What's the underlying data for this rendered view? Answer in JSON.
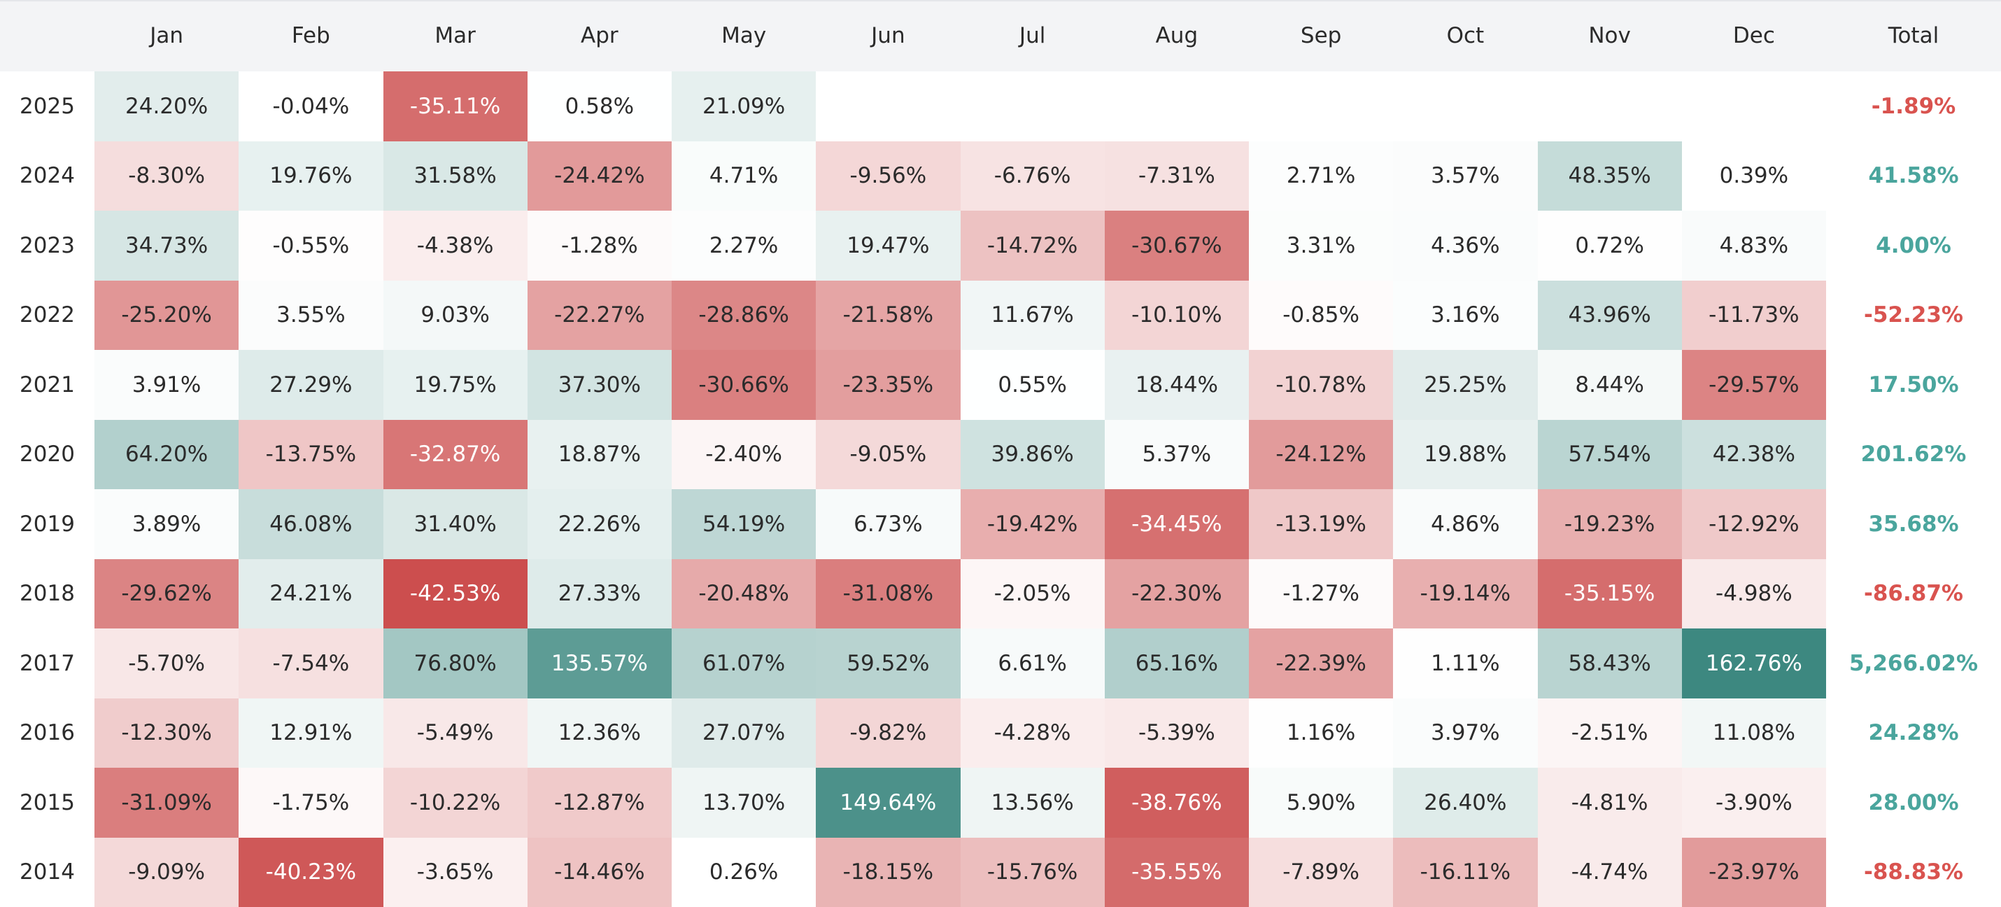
{
  "header": {
    "columns": [
      "Jan",
      "Feb",
      "Mar",
      "Apr",
      "May",
      "Jun",
      "Jul",
      "Aug",
      "Sep",
      "Oct",
      "Nov",
      "Dec",
      "Total"
    ]
  },
  "rows": [
    {
      "year": "2025",
      "cells": [
        "24.20%",
        "-0.04%",
        "-35.11%",
        "0.58%",
        "21.09%"
      ],
      "total": "-1.89%"
    },
    {
      "year": "2024",
      "cells": [
        "-8.30%",
        "19.76%",
        "31.58%",
        "-24.42%",
        "4.71%",
        "-9.56%",
        "-6.76%",
        "-7.31%",
        "2.71%",
        "3.57%",
        "48.35%",
        "0.39%"
      ],
      "total": "41.58%"
    },
    {
      "year": "2023",
      "cells": [
        "34.73%",
        "-0.55%",
        "-4.38%",
        "-1.28%",
        "2.27%",
        "19.47%",
        "-14.72%",
        "-30.67%",
        "3.31%",
        "4.36%",
        "0.72%",
        "4.83%"
      ],
      "total": "4.00%"
    },
    {
      "year": "2022",
      "cells": [
        "-25.20%",
        "3.55%",
        "9.03%",
        "-22.27%",
        "-28.86%",
        "-21.58%",
        "11.67%",
        "-10.10%",
        "-0.85%",
        "3.16%",
        "43.96%",
        "-11.73%"
      ],
      "total": "-52.23%"
    },
    {
      "year": "2021",
      "cells": [
        "3.91%",
        "27.29%",
        "19.75%",
        "37.30%",
        "-30.66%",
        "-23.35%",
        "0.55%",
        "18.44%",
        "-10.78%",
        "25.25%",
        "8.44%",
        "-29.57%"
      ],
      "total": "17.50%"
    },
    {
      "year": "2020",
      "cells": [
        "64.20%",
        "-13.75%",
        "-32.87%",
        "18.87%",
        "-2.40%",
        "-9.05%",
        "39.86%",
        "5.37%",
        "-24.12%",
        "19.88%",
        "57.54%",
        "42.38%"
      ],
      "total": "201.62%"
    },
    {
      "year": "2019",
      "cells": [
        "3.89%",
        "46.08%",
        "31.40%",
        "22.26%",
        "54.19%",
        "6.73%",
        "-19.42%",
        "-34.45%",
        "-13.19%",
        "4.86%",
        "-19.23%",
        "-12.92%"
      ],
      "total": "35.68%"
    },
    {
      "year": "2018",
      "cells": [
        "-29.62%",
        "24.21%",
        "-42.53%",
        "27.33%",
        "-20.48%",
        "-31.08%",
        "-2.05%",
        "-22.30%",
        "-1.27%",
        "-19.14%",
        "-35.15%",
        "-4.98%"
      ],
      "total": "-86.87%"
    },
    {
      "year": "2017",
      "cells": [
        "-5.70%",
        "-7.54%",
        "76.80%",
        "135.57%",
        "61.07%",
        "59.52%",
        "6.61%",
        "65.16%",
        "-22.39%",
        "1.11%",
        "58.43%",
        "162.76%"
      ],
      "total": "5,266.02%"
    },
    {
      "year": "2016",
      "cells": [
        "-12.30%",
        "12.91%",
        "-5.49%",
        "12.36%",
        "27.07%",
        "-9.82%",
        "-4.28%",
        "-5.39%",
        "1.16%",
        "3.97%",
        "-2.51%",
        "11.08%"
      ],
      "total": "24.28%"
    },
    {
      "year": "2015",
      "cells": [
        "-31.09%",
        "-1.75%",
        "-10.22%",
        "-12.87%",
        "13.70%",
        "149.64%",
        "13.56%",
        "-38.76%",
        "5.90%",
        "26.40%",
        "-4.81%",
        "-3.90%"
      ],
      "total": "28.00%"
    },
    {
      "year": "2014",
      "cells": [
        "-9.09%",
        "-40.23%",
        "-3.65%",
        "-14.46%",
        "0.26%",
        "-18.15%",
        "-15.76%",
        "-35.55%",
        "-7.89%",
        "-16.11%",
        "-4.74%",
        "-23.97%"
      ],
      "total": "-88.83%"
    }
  ]
}
